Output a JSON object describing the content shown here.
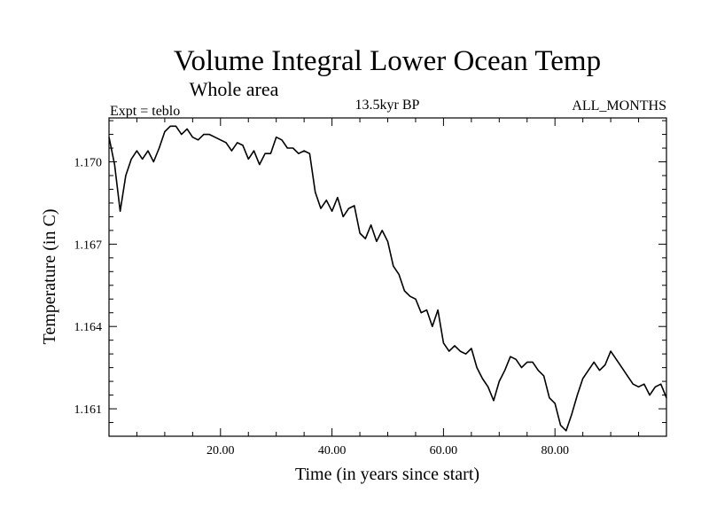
{
  "chart_data": {
    "type": "line",
    "title": "Volume Integral Lower Ocean Temp",
    "subtitle": "Whole area",
    "annotations": {
      "left": "Expt = teblo",
      "center": "13.5kyr BP",
      "right": "ALL_MONTHS"
    },
    "xlabel": "Time (in years since start)",
    "ylabel": "Temperature (in C)",
    "xlim": [
      0,
      100
    ],
    "ylim": [
      1.16,
      1.1716
    ],
    "xticks": [
      20,
      40,
      60,
      80
    ],
    "xtick_labels": [
      "20.00",
      "40.00",
      "60.00",
      "80.00"
    ],
    "yticks": [
      1.161,
      1.164,
      1.167,
      1.17
    ],
    "ytick_labels": [
      "1.161",
      "1.164",
      "1.167",
      "1.170"
    ],
    "grid": false,
    "series": [
      {
        "name": "Volume Integral Lower Ocean Temp",
        "color": "#000000",
        "x": [
          0,
          1,
          2,
          3,
          4,
          5,
          6,
          7,
          8,
          9,
          10,
          11,
          12,
          13,
          14,
          15,
          16,
          17,
          18,
          19,
          20,
          21,
          22,
          23,
          24,
          25,
          26,
          27,
          28,
          29,
          30,
          31,
          32,
          33,
          34,
          35,
          36,
          37,
          38,
          39,
          40,
          41,
          42,
          43,
          44,
          45,
          46,
          47,
          48,
          49,
          50,
          51,
          52,
          53,
          54,
          55,
          56,
          57,
          58,
          59,
          60,
          61,
          62,
          63,
          64,
          65,
          66,
          67,
          68,
          69,
          70,
          71,
          72,
          73,
          74,
          75,
          76,
          77,
          78,
          79,
          80,
          81,
          82,
          83,
          84,
          85,
          86,
          87,
          88,
          89,
          90,
          91,
          92,
          93,
          94,
          95,
          96,
          97,
          98,
          99,
          100
        ],
        "values": [
          1.1709,
          1.1699,
          1.1682,
          1.1695,
          1.1701,
          1.1704,
          1.1701,
          1.1704,
          1.17,
          1.1705,
          1.1711,
          1.1713,
          1.1713,
          1.171,
          1.1712,
          1.1709,
          1.1708,
          1.171,
          1.171,
          1.1709,
          1.1708,
          1.1707,
          1.1704,
          1.1707,
          1.1706,
          1.1701,
          1.1704,
          1.1699,
          1.1703,
          1.1703,
          1.1709,
          1.1708,
          1.1705,
          1.1705,
          1.1703,
          1.1704,
          1.1703,
          1.1689,
          1.1683,
          1.1686,
          1.1682,
          1.1687,
          1.168,
          1.1683,
          1.1684,
          1.1674,
          1.1672,
          1.1677,
          1.1671,
          1.1675,
          1.1671,
          1.1662,
          1.1659,
          1.1653,
          1.1651,
          1.165,
          1.1645,
          1.1646,
          1.164,
          1.1646,
          1.1634,
          1.1631,
          1.1633,
          1.1631,
          1.163,
          1.1632,
          1.1625,
          1.1621,
          1.1618,
          1.1613,
          1.162,
          1.1624,
          1.1629,
          1.1628,
          1.1625,
          1.1627,
          1.1627,
          1.1624,
          1.1622,
          1.1614,
          1.1612,
          1.1604,
          1.1602,
          1.1608,
          1.1615,
          1.1621,
          1.1624,
          1.1627,
          1.1624,
          1.1626,
          1.1631,
          1.1628,
          1.1625,
          1.1622,
          1.1619,
          1.1618,
          1.1619,
          1.1615,
          1.1618,
          1.1619,
          1.1614
        ]
      }
    ]
  }
}
